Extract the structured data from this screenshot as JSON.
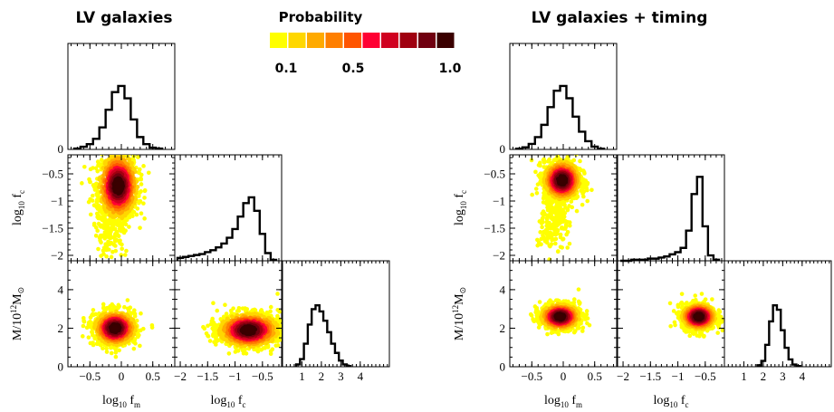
{
  "titles": {
    "left": "LV galaxies",
    "right": "LV galaxies + timing"
  },
  "colorbar": {
    "label": "Probability",
    "colors": [
      "#ffff00",
      "#ffd700",
      "#ffaa00",
      "#ff7f00",
      "#ff5500",
      "#ff0033",
      "#d00020",
      "#a00010",
      "#700010",
      "#3a0000"
    ],
    "ticks": [
      {
        "value": 0.1,
        "label": "0.1"
      },
      {
        "value": 0.5,
        "label": "0.5"
      },
      {
        "value": 1.0,
        "label": "1.0"
      }
    ]
  },
  "axis_labels": {
    "fm": "log₁₀ f_m",
    "fc": "log₁₀ f_c",
    "mass": "M/10¹²M⊙"
  },
  "chart_data": [
    {
      "type": "corner",
      "title": "LV galaxies",
      "parameters": [
        {
          "key": "fm",
          "label": "log10 f_m",
          "range": [
            -0.85,
            0.85
          ],
          "ticks": [
            -0.5,
            0,
            0.5
          ],
          "tick_labels": [
            "−0.5",
            "0",
            "0.5"
          ]
        },
        {
          "key": "fc",
          "label": "log10 f_c",
          "range": [
            -2.1,
            -0.15
          ],
          "ticks": [
            -2,
            -1.5,
            -1,
            -0.5
          ],
          "tick_labels": [
            "−2",
            "−1.5",
            "−1",
            "−0.5"
          ]
        },
        {
          "key": "mass",
          "label": "M/10^12 M_sun",
          "range": [
            0,
            5.5
          ],
          "ticks": [
            0,
            2,
            4
          ],
          "tick_labels": [
            "0",
            "2",
            "4"
          ],
          "hist_ticks": [
            1,
            2,
            3,
            4
          ],
          "hist_tick_labels": [
            "1",
            "2",
            "3",
            "4"
          ]
        }
      ],
      "top_axis_ticks": [
        0
      ],
      "histograms": {
        "fm": {
          "x": [
            -0.7,
            -0.6,
            -0.5,
            -0.4,
            -0.3,
            -0.2,
            -0.1,
            0.0,
            0.1,
            0.2,
            0.3,
            0.4,
            0.5,
            0.6
          ],
          "y": [
            0.01,
            0.03,
            0.06,
            0.12,
            0.25,
            0.45,
            0.65,
            0.72,
            0.58,
            0.34,
            0.14,
            0.06,
            0.02,
            0.01
          ]
        },
        "fc": {
          "x": [
            -2.0,
            -1.9,
            -1.8,
            -1.7,
            -1.6,
            -1.5,
            -1.4,
            -1.3,
            -1.2,
            -1.1,
            -1.0,
            -0.9,
            -0.8,
            -0.7,
            -0.6,
            -0.5,
            -0.4,
            -0.3
          ],
          "y": [
            0.03,
            0.04,
            0.05,
            0.06,
            0.07,
            0.09,
            0.11,
            0.14,
            0.18,
            0.24,
            0.33,
            0.46,
            0.6,
            0.66,
            0.52,
            0.28,
            0.08,
            0.01
          ]
        },
        "mass": {
          "x": [
            0.8,
            1.0,
            1.2,
            1.4,
            1.6,
            1.8,
            2.0,
            2.2,
            2.4,
            2.6,
            2.8,
            3.0,
            3.2,
            3.4
          ],
          "y": [
            0.03,
            0.1,
            0.3,
            0.55,
            0.75,
            0.8,
            0.72,
            0.6,
            0.45,
            0.3,
            0.18,
            0.08,
            0.03,
            0.01
          ]
        }
      },
      "scatter_regions": {
        "fm_fc": {
          "center": [
            -0.05,
            -0.72
          ],
          "spread": [
            0.28,
            0.55
          ],
          "tail_toward": [
            -0.2,
            -1.8
          ]
        },
        "fm_mass": {
          "center": [
            -0.1,
            2.0
          ],
          "spread": [
            0.3,
            0.8
          ]
        },
        "fc_mass": {
          "center": [
            -0.75,
            1.9
          ],
          "spread": [
            0.5,
            0.8
          ]
        }
      }
    },
    {
      "type": "corner",
      "title": "LV galaxies + timing",
      "parameters": [
        {
          "key": "fm",
          "label": "log10 f_m",
          "range": [
            -0.85,
            0.85
          ],
          "ticks": [
            -0.5,
            0,
            0.5
          ],
          "tick_labels": [
            "−0.5",
            "0",
            "0.5"
          ]
        },
        {
          "key": "fc",
          "label": "log10 f_c",
          "range": [
            -2.1,
            -0.15
          ],
          "ticks": [
            -2,
            -1.5,
            -1,
            -0.5
          ],
          "tick_labels": [
            "−2",
            "−1.5",
            "−1",
            "−0.5"
          ]
        },
        {
          "key": "mass",
          "label": "M/10^12 M_sun",
          "range": [
            0,
            5.5
          ],
          "ticks": [
            0,
            2,
            4
          ],
          "tick_labels": [
            "0",
            "2",
            "4"
          ],
          "hist_ticks": [
            1,
            2,
            3,
            4
          ],
          "hist_tick_labels": [
            "1",
            "2",
            "3",
            "4"
          ]
        }
      ],
      "top_axis_ticks": [
        0
      ],
      "histograms": {
        "fm": {
          "x": [
            -0.7,
            -0.6,
            -0.5,
            -0.4,
            -0.3,
            -0.2,
            -0.1,
            0.0,
            0.1,
            0.2,
            0.3,
            0.4,
            0.5,
            0.6
          ],
          "y": [
            0.01,
            0.03,
            0.08,
            0.18,
            0.36,
            0.62,
            0.86,
            0.93,
            0.75,
            0.48,
            0.26,
            0.12,
            0.04,
            0.01
          ]
        },
        "fc": {
          "x": [
            -2.0,
            -1.9,
            -1.8,
            -1.7,
            -1.6,
            -1.5,
            -1.4,
            -1.3,
            -1.2,
            -1.1,
            -1.0,
            -0.9,
            -0.8,
            -0.7,
            -0.6,
            -0.5,
            -0.4,
            -0.3
          ],
          "y": [
            0.0,
            0.0,
            0.01,
            0.01,
            0.01,
            0.02,
            0.02,
            0.03,
            0.04,
            0.06,
            0.08,
            0.12,
            0.28,
            0.62,
            0.78,
            0.32,
            0.05,
            0.01
          ]
        },
        "mass": {
          "x": [
            1.8,
            2.0,
            2.2,
            2.4,
            2.6,
            2.8,
            3.0,
            3.2,
            3.4,
            3.6,
            3.8
          ],
          "y": [
            0.02,
            0.08,
            0.3,
            0.62,
            0.84,
            0.78,
            0.5,
            0.26,
            0.1,
            0.03,
            0.01
          ]
        }
      },
      "scatter_regions": {
        "fm_fc": {
          "center": [
            -0.02,
            -0.62
          ],
          "spread": [
            0.26,
            0.32
          ],
          "tail_toward": [
            -0.2,
            -1.7
          ]
        },
        "fm_mass": {
          "center": [
            -0.05,
            2.6
          ],
          "spread": [
            0.28,
            0.6
          ]
        },
        "fc_mass": {
          "center": [
            -0.62,
            2.6
          ],
          "spread": [
            0.28,
            0.6
          ]
        }
      }
    }
  ]
}
